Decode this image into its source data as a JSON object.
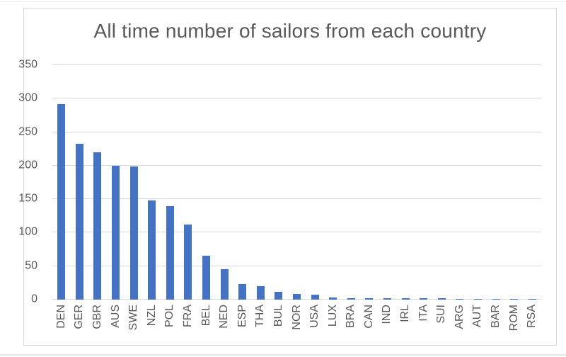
{
  "chart_data": {
    "type": "bar",
    "title": "All time number of sailors from each country",
    "categories": [
      "DEN",
      "GER",
      "GBR",
      "AUS",
      "SWE",
      "NZL",
      "POL",
      "FRA",
      "BEL",
      "NED",
      "ESP",
      "THA",
      "BUL",
      "NOR",
      "USA",
      "LUX",
      "BRA",
      "CAN",
      "IND",
      "IRL",
      "ITA",
      "SUI",
      "ARG",
      "AUT",
      "BAR",
      "ROM",
      "RSA"
    ],
    "values": [
      292,
      233,
      220,
      200,
      199,
      148,
      140,
      112,
      66,
      45,
      23,
      20,
      12,
      8,
      7,
      3,
      2,
      2,
      2,
      2,
      2,
      2,
      1,
      1,
      1,
      1,
      1
    ],
    "xlabel": "",
    "ylabel": "",
    "ylim": [
      0,
      350
    ],
    "yticks": [
      0,
      50,
      100,
      150,
      200,
      250,
      300,
      350
    ],
    "grid": true,
    "legend": false,
    "colors": {
      "bar": "#4472C4",
      "text": "#595959",
      "gridline": "#d9d9d9",
      "frame_border": "#d7d7d7",
      "background": "#ffffff"
    }
  }
}
